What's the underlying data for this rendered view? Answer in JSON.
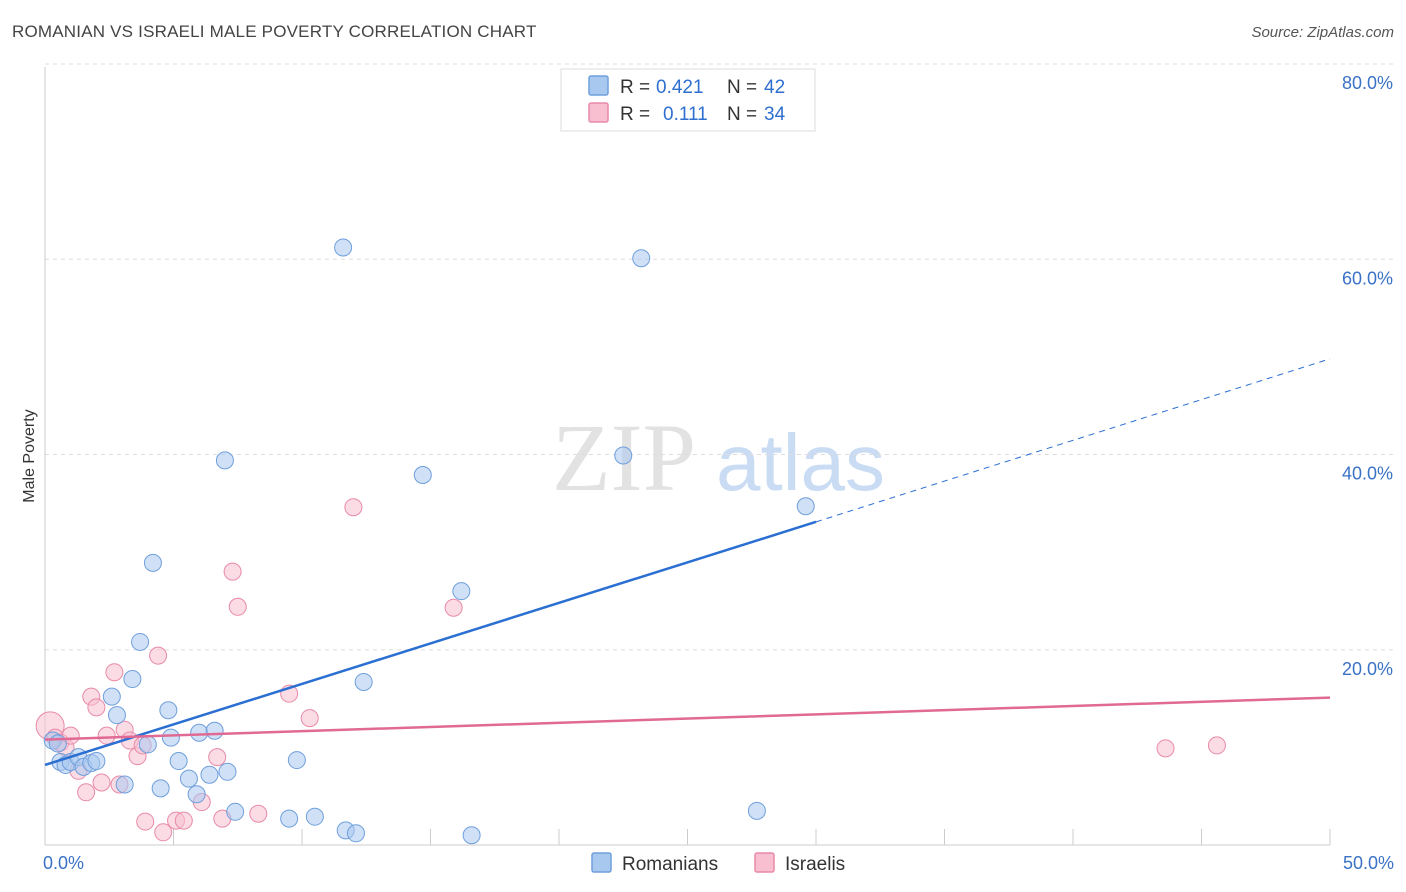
{
  "title": "ROMANIAN VS ISRAELI MALE POVERTY CORRELATION CHART",
  "source": "Source: ZipAtlas.com",
  "watermark": {
    "zip": "ZIP",
    "atlas": "atlas"
  },
  "colors": {
    "romanian_fill": "#a9c8f0",
    "romanian_stroke": "#6f9fdc",
    "romanian_line": "#2a6fd1",
    "israeli_fill": "#f7bfd0",
    "israeli_stroke": "#e88aa8",
    "israeli_line": "#e06a93",
    "axis_text": "#3a72c6",
    "grid": "#dddddd"
  },
  "legend": {
    "rows": [
      {
        "r_label": "R =",
        "r_value": "0.421",
        "n_label": "N =",
        "n_value": "42"
      },
      {
        "r_label": "R =",
        "r_value": "0.111",
        "n_label": "N =",
        "n_value": "34"
      }
    ]
  },
  "bottom_legend": [
    "Romanians",
    "Israelis"
  ],
  "chart_data": {
    "type": "scatter",
    "title": "ROMANIAN VS ISRAELI MALE POVERTY CORRELATION CHART",
    "xlabel": "",
    "ylabel": "Male Poverty",
    "xlim": [
      0,
      50
    ],
    "ylim": [
      0,
      80
    ],
    "x_tick_labels": [
      "0.0%",
      "50.0%"
    ],
    "y_ticks": [
      20,
      40,
      60,
      80
    ],
    "y_tick_labels": [
      "20.0%",
      "40.0%",
      "60.0%",
      "80.0%"
    ],
    "grid": true,
    "series": [
      {
        "name": "Romanians",
        "r": 0.421,
        "n": 42,
        "trend": {
          "x0": 0,
          "y0": 8.2,
          "x1": 30,
          "y1": 33.1,
          "dashed_to_x": 50,
          "dashed_to_y": 49.8
        },
        "points": [
          [
            0.3,
            10.7
          ],
          [
            0.5,
            10.4
          ],
          [
            0.6,
            8.5
          ],
          [
            0.8,
            8.2
          ],
          [
            1.0,
            8.5
          ],
          [
            1.3,
            9.0
          ],
          [
            1.5,
            8.0
          ],
          [
            1.8,
            8.4
          ],
          [
            2.0,
            8.6
          ],
          [
            2.6,
            15.2
          ],
          [
            2.8,
            13.3
          ],
          [
            3.1,
            6.2
          ],
          [
            3.4,
            17.0
          ],
          [
            3.7,
            20.8
          ],
          [
            4.0,
            10.3
          ],
          [
            4.2,
            28.9
          ],
          [
            4.5,
            5.8
          ],
          [
            4.8,
            13.8
          ],
          [
            4.9,
            11.0
          ],
          [
            5.2,
            8.6
          ],
          [
            5.6,
            6.8
          ],
          [
            5.9,
            5.2
          ],
          [
            6.0,
            11.5
          ],
          [
            6.4,
            7.2
          ],
          [
            6.6,
            11.7
          ],
          [
            7.0,
            39.4
          ],
          [
            7.1,
            7.5
          ],
          [
            7.4,
            3.4
          ],
          [
            9.5,
            2.7
          ],
          [
            9.8,
            8.7
          ],
          [
            10.5,
            2.9
          ],
          [
            11.6,
            61.2
          ],
          [
            11.7,
            1.5
          ],
          [
            12.1,
            1.2
          ],
          [
            12.4,
            16.7
          ],
          [
            14.7,
            37.9
          ],
          [
            16.2,
            26.0
          ],
          [
            16.6,
            1.0
          ],
          [
            23.2,
            60.1
          ],
          [
            22.5,
            39.9
          ],
          [
            27.7,
            3.5
          ],
          [
            29.6,
            34.7
          ]
        ]
      },
      {
        "name": "Israelis",
        "r": 0.111,
        "n": 34,
        "trend": {
          "x0": 0,
          "y0": 10.8,
          "x1": 50,
          "y1": 15.1
        },
        "points": [
          [
            0.2,
            12.2
          ],
          [
            0.4,
            11.0
          ],
          [
            0.6,
            10.5
          ],
          [
            0.8,
            10.0
          ],
          [
            1.0,
            11.2
          ],
          [
            1.3,
            7.6
          ],
          [
            1.6,
            5.4
          ],
          [
            1.8,
            15.2
          ],
          [
            2.0,
            14.1
          ],
          [
            2.2,
            6.4
          ],
          [
            2.4,
            11.2
          ],
          [
            2.7,
            17.7
          ],
          [
            2.9,
            6.2
          ],
          [
            3.1,
            11.8
          ],
          [
            3.3,
            10.7
          ],
          [
            3.6,
            9.1
          ],
          [
            3.8,
            10.2
          ],
          [
            3.9,
            2.4
          ],
          [
            4.4,
            19.4
          ],
          [
            4.6,
            1.3
          ],
          [
            5.1,
            2.5
          ],
          [
            5.4,
            2.5
          ],
          [
            6.1,
            4.4
          ],
          [
            6.7,
            9.0
          ],
          [
            6.9,
            2.7
          ],
          [
            7.3,
            28.0
          ],
          [
            7.5,
            24.4
          ],
          [
            8.3,
            3.2
          ],
          [
            9.5,
            15.5
          ],
          [
            10.3,
            13.0
          ],
          [
            12.0,
            34.6
          ],
          [
            15.9,
            24.3
          ],
          [
            43.6,
            9.9
          ],
          [
            45.6,
            10.2
          ]
        ]
      }
    ]
  },
  "y_axis_title": "Male Poverty"
}
